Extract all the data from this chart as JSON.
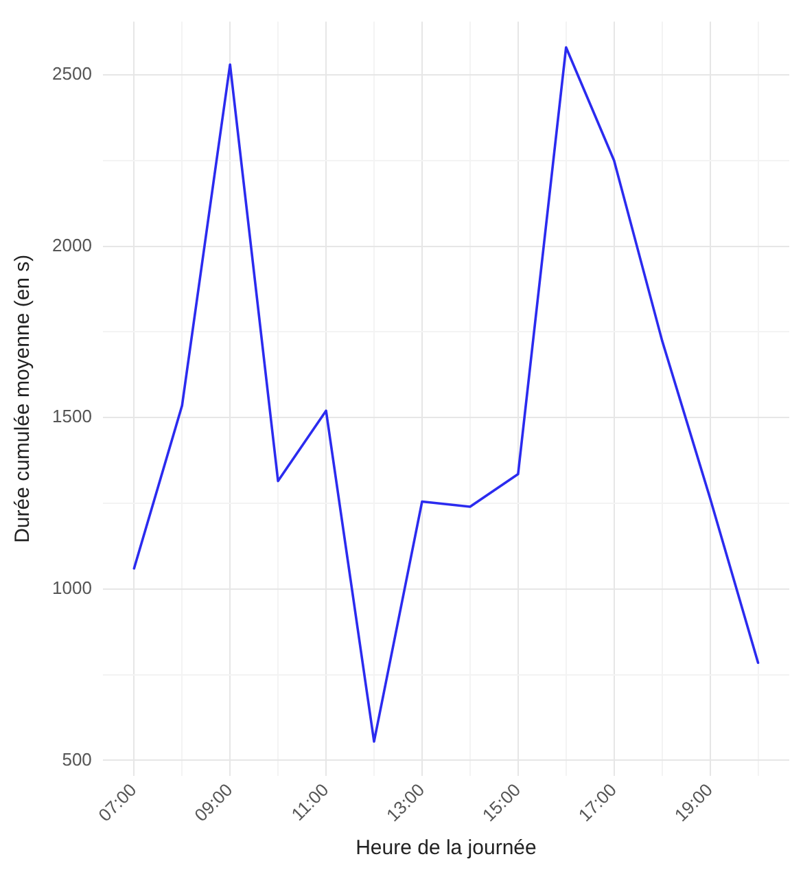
{
  "chart_data": {
    "type": "line",
    "xlabel": "Heure de la journée",
    "ylabel": "Durée cumulée moyenne (en s)",
    "x": [
      7,
      8,
      9,
      10,
      11,
      12,
      13,
      14,
      15,
      16,
      17,
      18,
      19,
      20
    ],
    "series": [
      {
        "color": "#2b2bef",
        "values": [
          1060,
          1535,
          2530,
          1315,
          1520,
          555,
          1255,
          1240,
          1335,
          2580,
          2250,
          1725,
          1265,
          785
        ]
      }
    ],
    "xlim": [
      6.35,
      20.65
    ],
    "xticks": [
      {
        "value": 7,
        "label": "07:00"
      },
      {
        "value": 8,
        "label": null
      },
      {
        "value": 9,
        "label": "09:00"
      },
      {
        "value": 10,
        "label": null
      },
      {
        "value": 11,
        "label": "11:00"
      },
      {
        "value": 12,
        "label": null
      },
      {
        "value": 13,
        "label": "13:00"
      },
      {
        "value": 14,
        "label": null
      },
      {
        "value": 15,
        "label": "15:00"
      },
      {
        "value": 16,
        "label": null
      },
      {
        "value": 17,
        "label": "17:00"
      },
      {
        "value": 18,
        "label": null
      },
      {
        "value": 19,
        "label": "19:00"
      },
      {
        "value": 20,
        "label": null
      }
    ],
    "ylim": [
      455,
      2655
    ],
    "yticks": [
      500,
      {
        "value": 750,
        "label": null
      },
      1000,
      {
        "value": 1250,
        "label": null
      },
      1500,
      {
        "value": 1750,
        "label": null
      },
      2000,
      {
        "value": 2250,
        "label": null
      },
      2500
    ],
    "grid": true,
    "legend": false,
    "marker": "none",
    "line_style": "solid"
  }
}
